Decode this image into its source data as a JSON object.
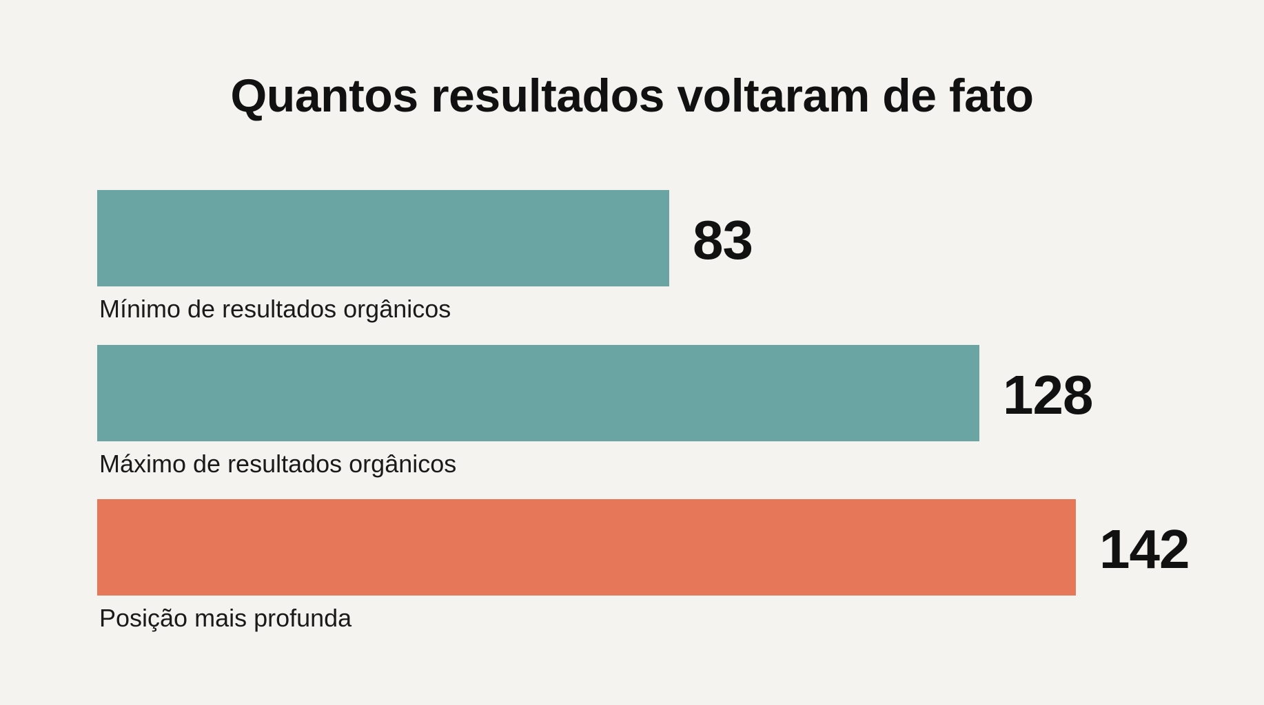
{
  "chart_data": {
    "type": "bar",
    "orientation": "horizontal",
    "title": "Quantos resultados voltaram de fato",
    "categories": [
      "Mínimo de resultados orgânicos",
      "Máximo de resultados orgânicos",
      "Posição mais profunda"
    ],
    "values": [
      83,
      128,
      142
    ],
    "colors": [
      "#6aa5a3",
      "#6aa5a3",
      "#e77759"
    ],
    "xlim": [
      0,
      142
    ],
    "grid": false,
    "legend": "none",
    "data_labels": true
  }
}
